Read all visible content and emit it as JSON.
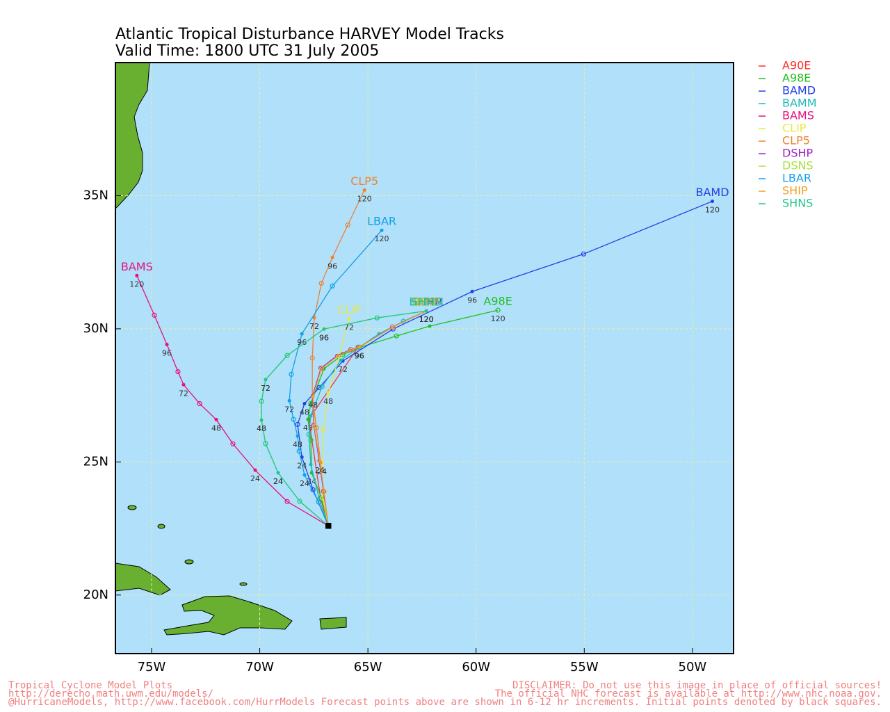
{
  "chart_data": {
    "type": "track",
    "title": "Atlantic Tropical Disturbance HARVEY Model Tracks",
    "subtitle": "Valid Time: 1800 UTC 31 July 2005",
    "xlim": [
      -76.67,
      -48.1
    ],
    "ylim": [
      17.8,
      40
    ],
    "xticks": [
      {
        "value": -75,
        "label": "75W"
      },
      {
        "value": -70,
        "label": "70W"
      },
      {
        "value": -65,
        "label": "65W"
      },
      {
        "value": -60,
        "label": "60W"
      },
      {
        "value": -55,
        "label": "55W"
      },
      {
        "value": -50,
        "label": "50W"
      }
    ],
    "yticks": [
      {
        "value": 20,
        "label": "20N"
      },
      {
        "value": 25,
        "label": "25N"
      },
      {
        "value": 30,
        "label": "30N"
      },
      {
        "value": 35,
        "label": "35N"
      }
    ],
    "grid": true,
    "legend": "right",
    "series": [
      {
        "name": "A90E",
        "color": "#ff3030",
        "x": [
          -66.83,
          -67.19,
          -67.73,
          -65.45
        ],
        "values": [
          22.6,
          23.65,
          26.6,
          29.31
        ],
        "hours": [
          null,
          null,
          null,
          null
        ]
      },
      {
        "name": "A98E",
        "color": "#20c020",
        "x": [
          -66.83,
          -67.15,
          -67.6,
          -67.64,
          -67.77,
          -67.64,
          -67.03,
          -66.16,
          -65.35,
          -63.68,
          -62.14,
          -58.99
        ],
        "values": [
          22.6,
          23.65,
          24.59,
          25.82,
          26.6,
          27.2,
          28.5,
          29.03,
          29.31,
          29.73,
          30.1,
          30.7
        ],
        "hours": [
          null,
          null,
          24,
          null,
          48,
          null,
          null,
          null,
          null,
          null,
          null,
          120
        ]
      },
      {
        "name": "BAMD",
        "color": "#2040e8",
        "x": [
          -66.83,
          -67.54,
          -68.05,
          -68.25,
          -67.93,
          -67.25,
          -66.16,
          -63.84,
          -60.18,
          -55.03,
          -49.08
        ],
        "values": [
          22.6,
          23.96,
          25.18,
          26.41,
          27.19,
          27.79,
          28.79,
          29.99,
          31.4,
          32.81,
          34.79
        ],
        "hours": [
          null,
          null,
          24,
          null,
          48,
          null,
          72,
          null,
          96,
          null,
          120
        ]
      },
      {
        "name": "BAMM",
        "color": "#20b8b8",
        "x": [
          -66.83,
          -67.25,
          -67.64,
          -67.73,
          -67.64,
          -67.12,
          -66.25,
          -65.39,
          -64.49,
          -63.36,
          -62.3
        ],
        "values": [
          22.6,
          23.6,
          24.9,
          26.03,
          26.73,
          27.83,
          28.82,
          29.31,
          29.81,
          30.28,
          30.67
        ],
        "hours": [
          null,
          null,
          null,
          null,
          null,
          null,
          null,
          null,
          null,
          null,
          120
        ]
      },
      {
        "name": "BAMS",
        "color": "#e8107a",
        "x": [
          -66.83,
          -68.73,
          -70.21,
          -71.24,
          -72.01,
          -72.78,
          -73.52,
          -73.78,
          -74.29,
          -74.87,
          -75.68
        ],
        "values": [
          22.6,
          23.51,
          24.69,
          25.68,
          26.59,
          27.19,
          27.9,
          28.39,
          29.41,
          30.51,
          32.0
        ],
        "hours": [
          null,
          null,
          24,
          null,
          48,
          null,
          72,
          null,
          96,
          null,
          120
        ]
      },
      {
        "name": "CLIP",
        "color": "#e8e840",
        "x": [
          -66.83,
          -67.09,
          -67.12,
          -67.06,
          -66.83,
          -66.32,
          -65.87
        ],
        "values": [
          22.6,
          23.65,
          24.96,
          26.21,
          27.59,
          28.97,
          30.38
        ],
        "hours": [
          null,
          null,
          24,
          null,
          48,
          null,
          72
        ]
      },
      {
        "name": "CLP5",
        "color": "#f08030",
        "x": [
          -66.83,
          -67.06,
          -67.19,
          -67.38,
          -67.57,
          -67.57,
          -67.48,
          -67.15,
          -66.64,
          -65.93,
          -65.16
        ],
        "values": [
          22.6,
          23.89,
          24.98,
          26.29,
          27.46,
          28.9,
          30.41,
          31.71,
          32.68,
          33.9,
          35.21
        ],
        "hours": [
          null,
          null,
          null,
          null,
          null,
          null,
          72,
          null,
          96,
          null,
          120
        ]
      },
      {
        "name": "DSHP",
        "color": "#a020c8",
        "x": [
          -66.83,
          -67.05,
          -67.25,
          -67.5,
          -67.56,
          -67.17,
          -66.43,
          -65.79,
          -65.4,
          -63.86,
          -62.3
        ],
        "values": [
          22.6,
          23.9,
          25.03,
          26.38,
          27.48,
          28.52,
          28.99,
          29.22,
          29.31,
          30.07,
          30.67
        ],
        "hours": [
          null,
          null,
          null,
          null,
          null,
          null,
          null,
          null,
          96,
          null,
          120
        ]
      },
      {
        "name": "DSNS",
        "color": "#a8e040",
        "x": [
          -66.83,
          -68.15,
          -69.15,
          -69.73,
          -69.92,
          -69.92,
          -69.73,
          -68.73,
          -67.03,
          -64.58,
          -62.3
        ],
        "values": [
          22.6,
          23.52,
          24.59,
          25.69,
          26.57,
          27.28,
          28.09,
          29.0,
          29.99,
          30.41,
          30.67
        ],
        "hours": [
          null,
          null,
          24,
          null,
          48,
          null,
          72,
          null,
          96,
          null,
          120
        ]
      },
      {
        "name": "LBAR",
        "color": "#10a0e8",
        "x": [
          -66.83,
          -67.28,
          -67.93,
          -68.18,
          -68.25,
          -68.44,
          -68.63,
          -68.54,
          -68.05,
          -66.64,
          -64.36
        ],
        "values": [
          22.6,
          23.49,
          24.51,
          25.4,
          25.97,
          26.6,
          27.3,
          28.29,
          29.81,
          31.61,
          33.7
        ],
        "hours": [
          null,
          null,
          24,
          null,
          48,
          null,
          72,
          null,
          96,
          null,
          120
        ]
      },
      {
        "name": "SHIP",
        "color": "#f0a020",
        "x": [
          -66.83,
          -67.03,
          -67.22,
          -67.48,
          -67.54,
          -67.15,
          -66.41,
          -65.77,
          -65.39,
          -63.84,
          -62.3
        ],
        "values": [
          22.6,
          23.89,
          25.01,
          26.36,
          27.46,
          28.5,
          28.97,
          29.21,
          29.31,
          30.07,
          30.67
        ],
        "hours": [
          null,
          null,
          24,
          null,
          48,
          null,
          null,
          null,
          96,
          null,
          120
        ]
      },
      {
        "name": "SHNS",
        "color": "#20c888",
        "x": [
          -66.83,
          -68.15,
          -69.15,
          -69.73,
          -69.92,
          -69.92,
          -69.73,
          -68.73,
          -67.03,
          -64.58,
          -62.3
        ],
        "values": [
          22.6,
          23.52,
          24.59,
          25.69,
          26.57,
          27.28,
          28.09,
          29.0,
          29.99,
          30.41,
          30.67
        ],
        "hours": [
          null,
          null,
          24,
          null,
          48,
          null,
          72,
          null,
          96,
          null,
          120
        ]
      }
    ]
  },
  "footer": {
    "left": [
      "Tropical Cyclone Model Plots",
      "http://derecho.math.uwm.edu/models/"
    ],
    "right": [
      "DISCLAIMER: Do not use this image in place of official sources!",
      "The official NHC forecast is available at http://www.nhc.noaa.gov."
    ],
    "bottom": "@HurricaneModels, http://www.facebook.com/HurrModels  Forecast points above are shown in 6-12 hr increments. Initial points denoted by black squares."
  }
}
